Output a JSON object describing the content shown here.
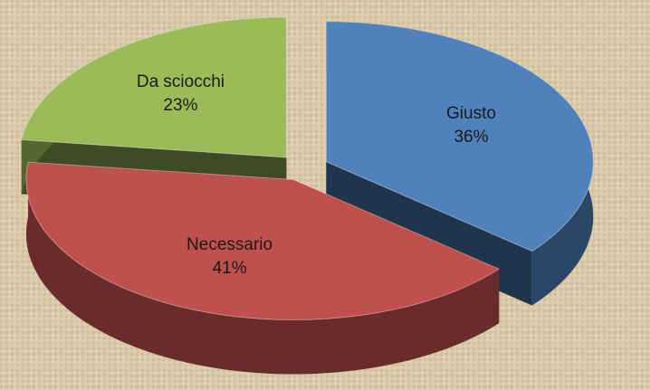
{
  "chart_data": {
    "type": "pie3d",
    "categories": [
      "Giusto",
      "Necessario",
      "Da sciocchi"
    ],
    "values": [
      36,
      41,
      23
    ],
    "value_labels": [
      "36%",
      "41%",
      "23%"
    ],
    "colors": [
      "#4f81bd",
      "#c0504d",
      "#9bbb59"
    ]
  }
}
